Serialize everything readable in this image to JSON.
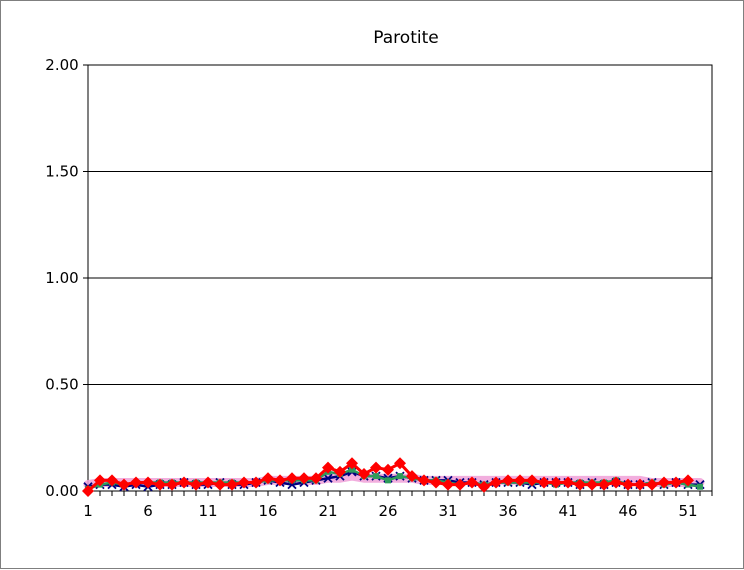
{
  "chart_data": {
    "type": "line",
    "title": "Parotite",
    "xlabel": "",
    "ylabel": "",
    "xlim": [
      1,
      53
    ],
    "ylim": [
      0,
      2
    ],
    "x_ticks": [
      "1",
      "6",
      "11",
      "16",
      "21",
      "26",
      "31",
      "36",
      "41",
      "46",
      "51"
    ],
    "y_ticks": [
      "0.00",
      "0.50",
      "1.00",
      "1.50",
      "2.00"
    ],
    "grid": true,
    "legend": "none",
    "colors": {
      "band": "#f0a0d8",
      "series1": "#00007f",
      "series2": "#2e9b5b",
      "series3": "#ff0000"
    },
    "series": [
      {
        "marker": "band",
        "color": "#f0a0d8",
        "values": [
          0.03,
          0.04,
          0.04,
          0.04,
          0.04,
          0.04,
          0.04,
          0.04,
          0.04,
          0.04,
          0.04,
          0.04,
          0.04,
          0.04,
          0.04,
          0.05,
          0.05,
          0.05,
          0.05,
          0.05,
          0.06,
          0.06,
          0.07,
          0.06,
          0.06,
          0.06,
          0.06,
          0.06,
          0.05,
          0.05,
          0.05,
          0.05,
          0.05,
          0.05,
          0.05,
          0.05,
          0.05,
          0.05,
          0.05,
          0.05,
          0.05,
          0.05,
          0.05,
          0.05,
          0.05,
          0.05,
          0.05,
          0.04,
          0.04,
          0.04,
          0.04,
          0.04
        ]
      },
      {
        "marker": "x",
        "color": "#00007f",
        "values": [
          0.02,
          0.03,
          0.03,
          0.02,
          0.03,
          0.02,
          0.03,
          0.03,
          0.04,
          0.03,
          0.03,
          0.04,
          0.03,
          0.03,
          0.04,
          0.05,
          0.04,
          0.03,
          0.04,
          0.05,
          0.06,
          0.07,
          0.09,
          0.07,
          0.07,
          0.06,
          0.07,
          0.06,
          0.05,
          0.05,
          0.05,
          0.04,
          0.04,
          0.03,
          0.04,
          0.04,
          0.04,
          0.03,
          0.04,
          0.04,
          0.04,
          0.03,
          0.04,
          0.03,
          0.04,
          0.03,
          0.03,
          0.04,
          0.03,
          0.04,
          0.03,
          0.03
        ]
      },
      {
        "marker": "square",
        "color": "#2e9b5b",
        "values": [
          0.01,
          0.03,
          0.04,
          0.03,
          0.04,
          0.04,
          0.04,
          0.04,
          0.04,
          0.04,
          0.04,
          0.04,
          0.04,
          0.04,
          0.04,
          0.05,
          0.05,
          0.05,
          0.05,
          0.05,
          0.09,
          0.08,
          0.1,
          0.07,
          0.07,
          0.05,
          0.07,
          0.06,
          0.05,
          0.05,
          0.04,
          0.03,
          0.04,
          0.03,
          0.04,
          0.04,
          0.04,
          0.04,
          0.04,
          0.03,
          0.04,
          0.04,
          0.04,
          0.04,
          0.05,
          0.03,
          0.03,
          0.04,
          0.03,
          0.04,
          0.03,
          0.02
        ]
      },
      {
        "marker": "diamond",
        "color": "#ff0000",
        "values": [
          0.0,
          0.05,
          0.05,
          0.03,
          0.04,
          0.04,
          0.03,
          0.03,
          0.04,
          0.03,
          0.04,
          0.03,
          0.03,
          0.04,
          0.04,
          0.06,
          0.05,
          0.06,
          0.06,
          0.06,
          0.11,
          0.09,
          0.13,
          0.08,
          0.11,
          0.1,
          0.13,
          0.07,
          0.05,
          0.04,
          0.03,
          0.03,
          0.04,
          0.02,
          0.04,
          0.05,
          0.05,
          0.05,
          0.04,
          0.04,
          0.04,
          0.03,
          0.03,
          0.03,
          0.04,
          0.03,
          0.03,
          0.03,
          0.04,
          0.04,
          0.05
        ]
      }
    ]
  }
}
